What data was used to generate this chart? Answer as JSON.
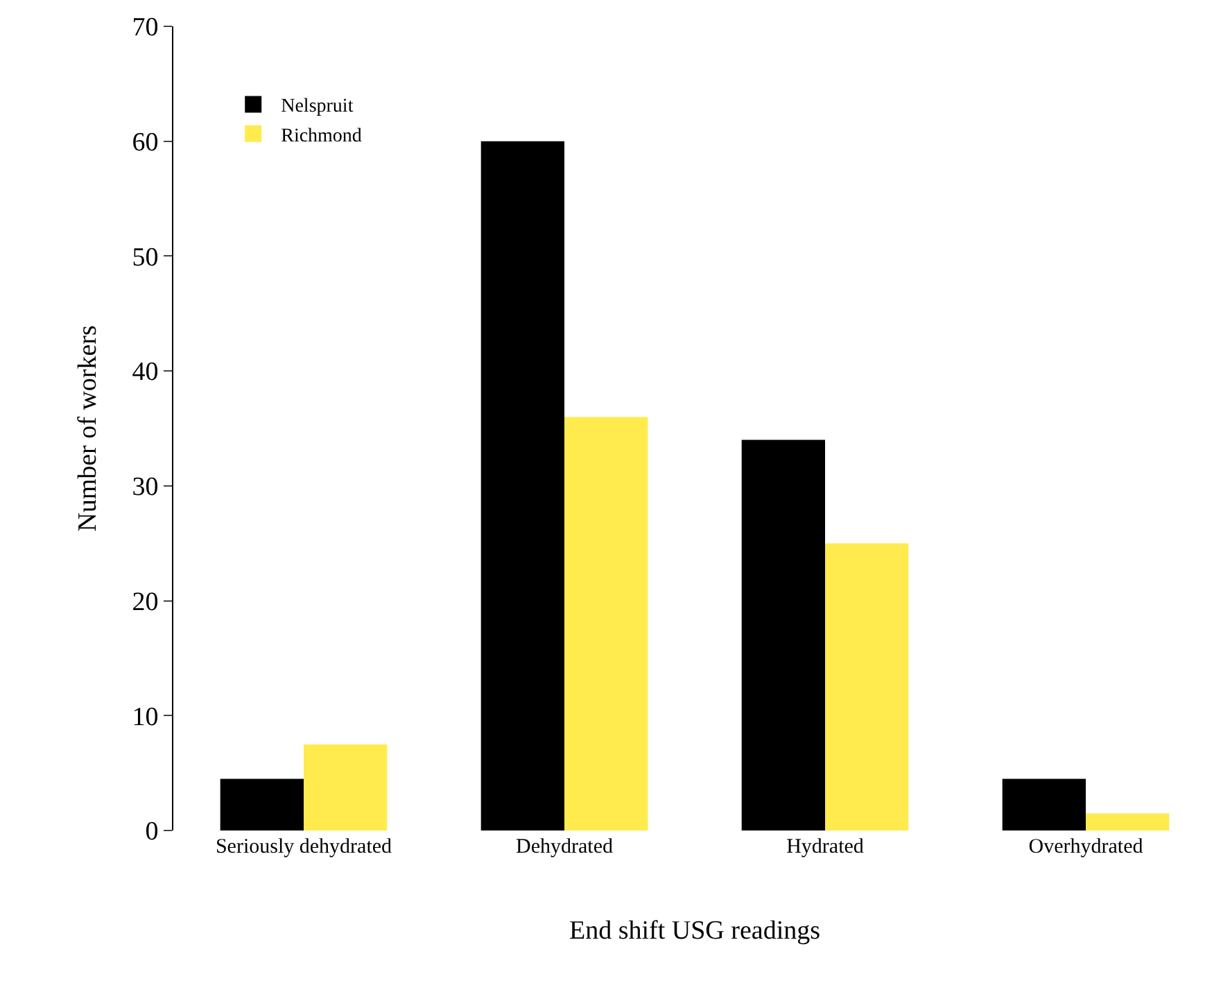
{
  "chart_data": {
    "type": "bar",
    "xlabel": "End shift USG readings",
    "ylabel": "Number of workers",
    "categories": [
      "Seriously dehydrated",
      "Dehydrated",
      "Hydrated",
      "Overhydrated"
    ],
    "series": [
      {
        "name": "Nelspruit",
        "color": "#000000",
        "values": [
          4.5,
          60,
          34,
          4.5
        ]
      },
      {
        "name": "Richmond",
        "color": "#ffeb4d",
        "values": [
          7.5,
          36,
          25,
          1.5
        ]
      }
    ],
    "ylim": [
      0,
      70
    ],
    "yticks": [
      0,
      10,
      20,
      30,
      40,
      50,
      60,
      70
    ],
    "legend": "top left"
  }
}
